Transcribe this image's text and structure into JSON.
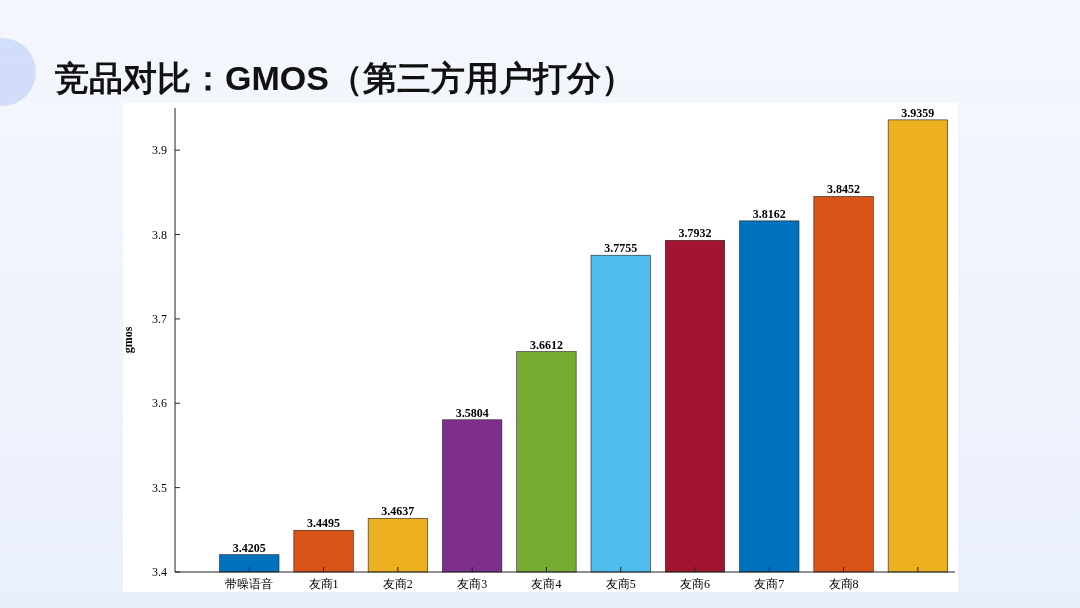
{
  "chart_data": {
    "type": "bar",
    "title": "竞品对比：GMOS（第三方用户打分）",
    "ylabel": "gmos",
    "categories": [
      "带噪语音",
      "友商1",
      "友商2",
      "友商3",
      "友商4",
      "友商5",
      "友商6",
      "友商7",
      "友商8",
      null
    ],
    "values": [
      3.4205,
      3.4495,
      3.4637,
      3.5804,
      3.6612,
      3.7755,
      3.7932,
      3.8162,
      3.8452,
      3.9359
    ],
    "colors": [
      "#0072bd",
      "#d95319",
      "#edb120",
      "#7e2f8e",
      "#77ac30",
      "#4dbeee",
      "#a2142f",
      "#0072bd",
      "#d95319",
      "#edb120"
    ],
    "ylim": [
      3.4,
      3.95
    ],
    "yticks": [
      3.4,
      3.5,
      3.6,
      3.7,
      3.8,
      3.9
    ],
    "data_labels": true,
    "grid": false
  }
}
